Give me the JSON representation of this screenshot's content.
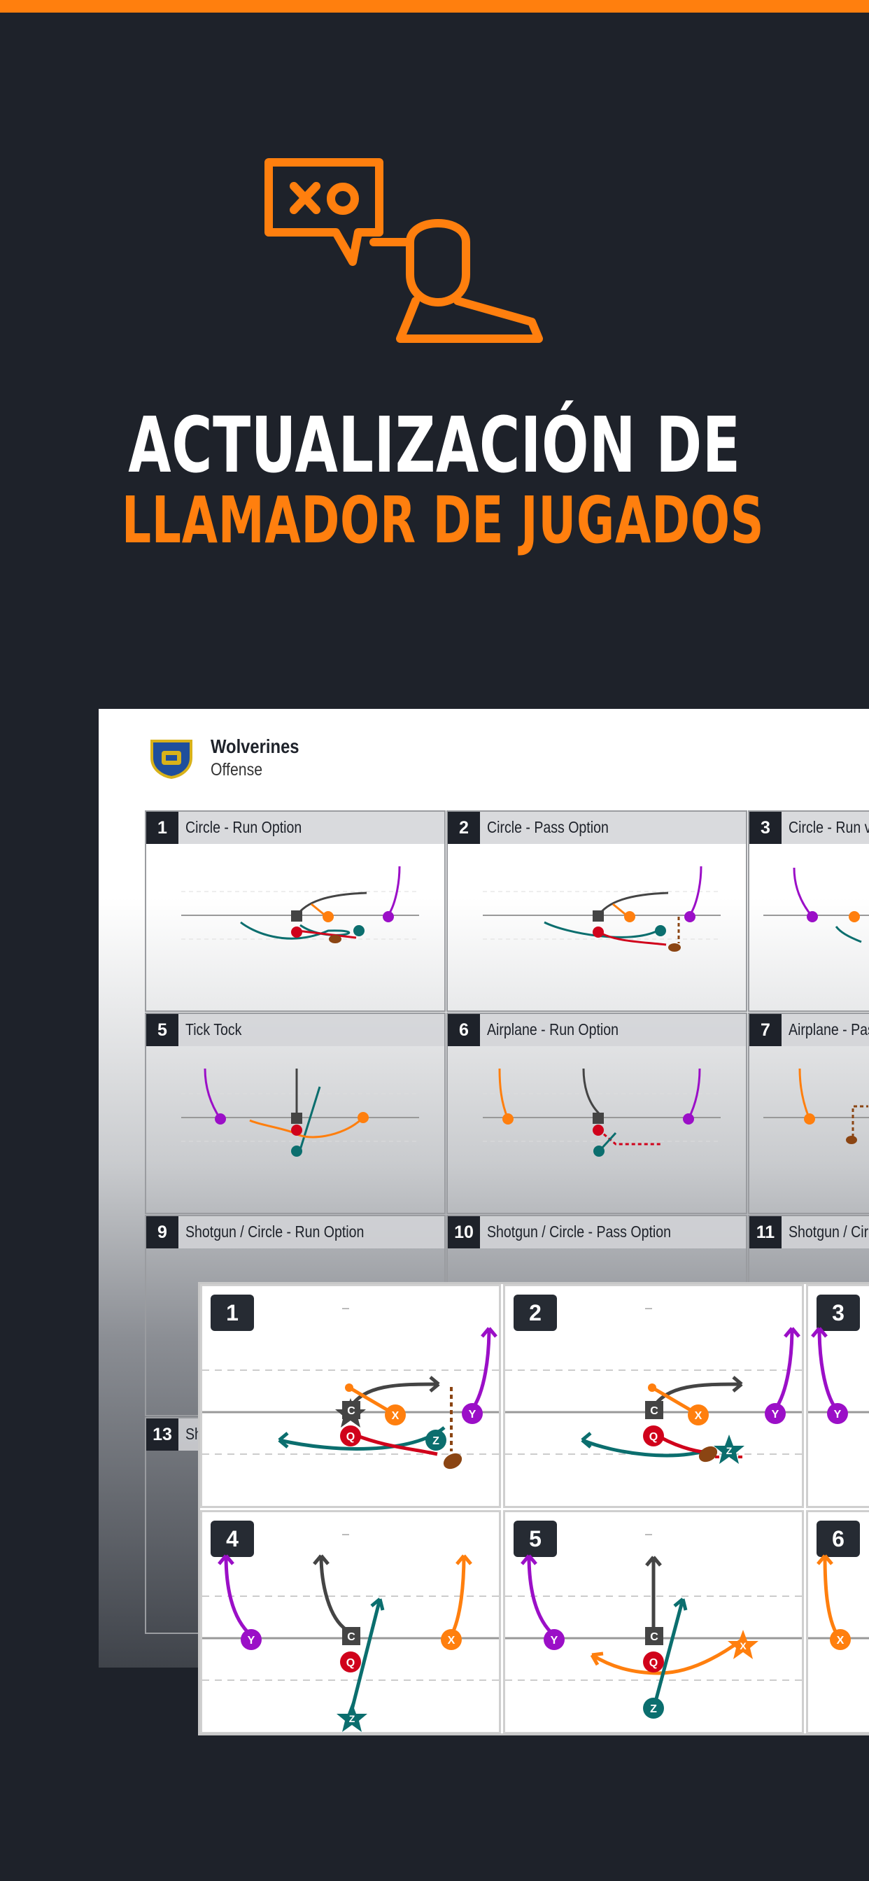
{
  "accent_color": "#ff7f0e",
  "hero": {
    "icon": "playbook-caller-icon",
    "title_line1": "ACTUALIZACIÓN DE",
    "title_line2": "LLAMADOR DE JUGADOS"
  },
  "sheet": {
    "team_name": "Wolverines",
    "team_sub": "Offense",
    "logo": "team-shield-logo",
    "plays": [
      {
        "num": "1",
        "title": "Circle - Run Option"
      },
      {
        "num": "2",
        "title": "Circle - Pass Option"
      },
      {
        "num": "3",
        "title": "Circle - Run vs"
      },
      {
        "num": "5",
        "title": "Tick Tock"
      },
      {
        "num": "6",
        "title": "Airplane - Run Option"
      },
      {
        "num": "7",
        "title": "Airplane - Pass"
      },
      {
        "num": "9",
        "title": "Shotgun / Circle - Run Option"
      },
      {
        "num": "10",
        "title": "Shotgun / Circle - Pass Option"
      },
      {
        "num": "11",
        "title": "Shotgun / Circ"
      },
      {
        "num": "13",
        "title": "Sh"
      }
    ]
  },
  "cards": [
    {
      "num": "1"
    },
    {
      "num": "2"
    },
    {
      "num": "3"
    },
    {
      "num": "4"
    },
    {
      "num": "5"
    },
    {
      "num": "6"
    }
  ],
  "players": {
    "center": "C",
    "quarterback": "Q",
    "x": "X",
    "y": "Y",
    "z": "Z"
  },
  "player_colors": {
    "center": "#444444",
    "quarterback": "#d0021b",
    "x": "#ff7f0e",
    "y": "#9b0fc7",
    "z": "#0b6e6e",
    "ball": "#8b4513"
  }
}
